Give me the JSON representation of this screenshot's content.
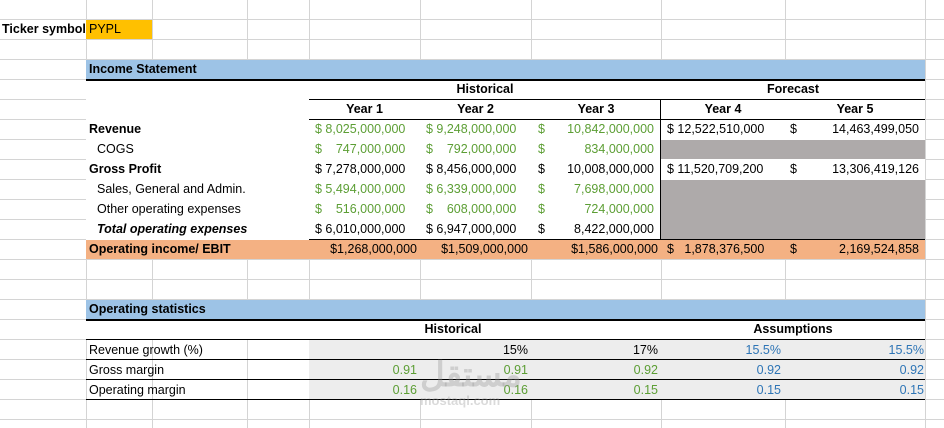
{
  "ticker": {
    "label": "Ticker symbol",
    "value": "PYPL"
  },
  "income_statement": {
    "title": "Income Statement",
    "historical_label": "Historical",
    "forecast_label": "Forecast",
    "years": [
      "Year 1",
      "Year 2",
      "Year 3",
      "Year 4",
      "Year 5"
    ],
    "rows": [
      {
        "label": "Revenue",
        "style": "bold",
        "cells": [
          "$ 8,025,000,000",
          "$ 9,248,000,000",
          "$",
          "10,842,000,000",
          "$ 12,522,510,000",
          "$",
          "14,463,499,050"
        ]
      },
      {
        "label": "COGS",
        "style": "indent",
        "cells": [
          "$    747,000,000",
          "$    792,000,000",
          "$",
          "834,000,000",
          "",
          "",
          ""
        ]
      },
      {
        "label": "Gross Profit",
        "style": "bold",
        "cells": [
          "$ 7,278,000,000",
          "$ 8,456,000,000",
          "$",
          "10,008,000,000",
          "$ 11,520,709,200",
          "$",
          "13,306,419,126"
        ]
      },
      {
        "label": "Sales, General and Admin.",
        "style": "indent",
        "cells": [
          "$ 5,494,000,000",
          "$ 6,339,000,000",
          "$",
          "7,698,000,000",
          "",
          "",
          ""
        ]
      },
      {
        "label": "Other operating expenses",
        "style": "indent",
        "cells": [
          "$    516,000,000",
          "$    608,000,000",
          "$",
          "724,000,000",
          "",
          "",
          ""
        ]
      },
      {
        "label": "Total operating expenses",
        "style": "bolditalic",
        "cells": [
          "$ 6,010,000,000",
          "$ 6,947,000,000",
          "$",
          "8,422,000,000",
          "",
          "",
          ""
        ]
      },
      {
        "label": "Operating income/ EBIT",
        "style": "bold",
        "cells": [
          "$1,268,000,000",
          "$1,509,000,000",
          "",
          "$1,586,000,000",
          "$   1,878,376,500",
          "$",
          "2,169,524,858"
        ]
      }
    ]
  },
  "operating_statistics": {
    "title": "Operating statistics",
    "historical_label": "Historical",
    "assumptions_label": "Assumptions",
    "rows": [
      {
        "label": "Revenue growth (%)",
        "cells": [
          "",
          "15%",
          "17%",
          "15.5%",
          "15.5%"
        ]
      },
      {
        "label": "Gross margin",
        "cells": [
          "0.91",
          "0.91",
          "0.92",
          "0.92",
          "0.92"
        ]
      },
      {
        "label": "Operating margin",
        "cells": [
          "0.16",
          "0.16",
          "0.15",
          "0.15",
          "0.15"
        ]
      }
    ]
  },
  "watermark": {
    "arabic": "مستقل",
    "latin": "mostaql.com"
  },
  "colors": {
    "ticker_fill": "#ffc000",
    "section_header_fill": "#9dc3e6",
    "ebit_fill": "#f4b183",
    "forecast_gray": "#aeaaaa",
    "stats_fill": "#ededed",
    "historical_green": "#5c9e34",
    "assumption_blue": "#2e75b6"
  }
}
